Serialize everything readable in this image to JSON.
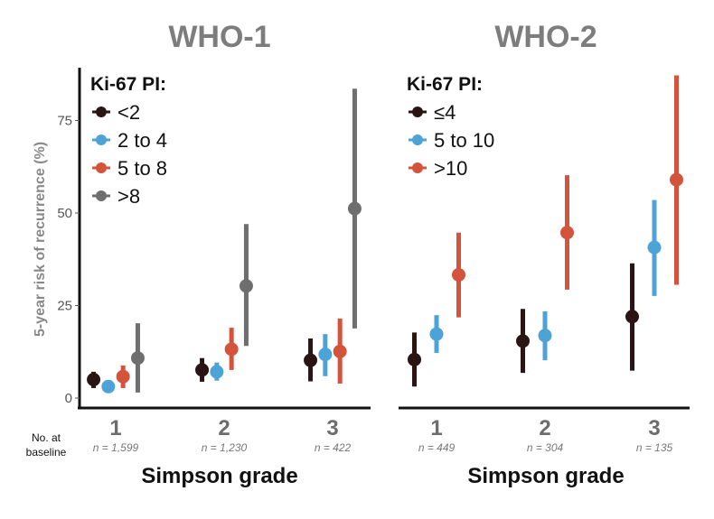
{
  "chart_data": [
    {
      "type": "scatter",
      "title": "WHO-1",
      "ylabel": "5-year risk of recurrence (%)",
      "xlabel": "Simpson grade",
      "ylim": [
        0,
        85
      ],
      "yticks": [
        0,
        25,
        50,
        75
      ],
      "categories": [
        "1",
        "2",
        "3"
      ],
      "n_label": "No. at baseline",
      "n_at_baseline": [
        "n = 1,599",
        "n = 1,230",
        "n = 422"
      ],
      "legend_title": "Ki-67 PI:",
      "legend_position": "top-left",
      "series": [
        {
          "name": "<2",
          "color": "#2a1414",
          "values": [
            5.0,
            7.6,
            10.2
          ],
          "lower": [
            2.7,
            4.4,
            4.5
          ],
          "upper": [
            7.1,
            10.8,
            16.1
          ]
        },
        {
          "name": "2 to 4",
          "color": "#4ea3d6",
          "values": [
            3.1,
            7.1,
            11.8
          ],
          "lower": [
            3.1,
            4.7,
            5.9
          ],
          "upper": [
            3.1,
            9.6,
            17.3
          ]
        },
        {
          "name": "5 to 8",
          "color": "#d3533b",
          "values": [
            5.8,
            13.2,
            12.6
          ],
          "lower": [
            2.7,
            7.6,
            3.9
          ],
          "upper": [
            8.8,
            19.0,
            21.5
          ]
        },
        {
          "name": ">8",
          "color": "#6e6e6e",
          "values": [
            10.8,
            30.3,
            51.2
          ],
          "lower": [
            1.5,
            14.1,
            18.8
          ],
          "upper": [
            20.2,
            47.0,
            83.6
          ]
        }
      ]
    },
    {
      "type": "scatter",
      "title": "WHO-2",
      "xlabel": "Simpson grade",
      "ylim": [
        0,
        85
      ],
      "categories": [
        "1",
        "2",
        "3"
      ],
      "n_at_baseline": [
        "n = 449",
        "n = 304",
        "n = 135"
      ],
      "legend_title": "Ki-67 PI:",
      "legend_position": "top-left",
      "series": [
        {
          "name": "≤4",
          "color": "#2a1414",
          "values": [
            10.4,
            15.4,
            22.0
          ],
          "lower": [
            3.1,
            6.8,
            7.4
          ],
          "upper": [
            17.7,
            24.1,
            36.4
          ]
        },
        {
          "name": "5 to 10",
          "color": "#4ea3d6",
          "values": [
            17.3,
            16.9,
            40.7
          ],
          "lower": [
            12.2,
            10.2,
            27.6
          ],
          "upper": [
            22.4,
            23.4,
            53.5
          ]
        },
        {
          "name": ">10",
          "color": "#d3533b",
          "values": [
            33.3,
            44.7,
            59.0
          ],
          "lower": [
            21.8,
            29.3,
            30.6
          ],
          "upper": [
            44.7,
            60.2,
            87.2
          ]
        }
      ]
    }
  ]
}
